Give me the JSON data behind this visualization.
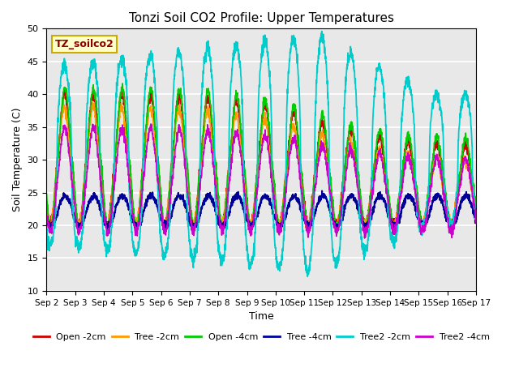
{
  "title": "Tonzi Soil CO2 Profile: Upper Temperatures",
  "xlabel": "Time",
  "ylabel": "Soil Temperature (C)",
  "ylim": [
    10,
    50
  ],
  "yticks": [
    10,
    15,
    20,
    25,
    30,
    35,
    40,
    45,
    50
  ],
  "xtick_labels": [
    "Sep 2",
    "Sep 3",
    "Sep 4",
    "Sep 5",
    "Sep 6",
    "Sep 7",
    "Sep 8",
    "Sep 9",
    "Sep 10",
    "Sep 11",
    "Sep 12",
    "Sep 13",
    "Sep 14",
    "Sep 15",
    "Sep 16",
    "Sep 17"
  ],
  "annotation_text": "TZ_soilco2",
  "series_colors": [
    "#cc0000",
    "#ff9900",
    "#00cc00",
    "#000099",
    "#00cccc",
    "#cc00cc"
  ],
  "series_names": [
    "Open -2cm",
    "Tree -2cm",
    "Open -4cm",
    "Tree -4cm",
    "Tree2 -2cm",
    "Tree2 -4cm"
  ],
  "bg_color": "#e8e8e8",
  "fig_bg": "#ffffff",
  "n_days": 15,
  "points_per_day": 144
}
